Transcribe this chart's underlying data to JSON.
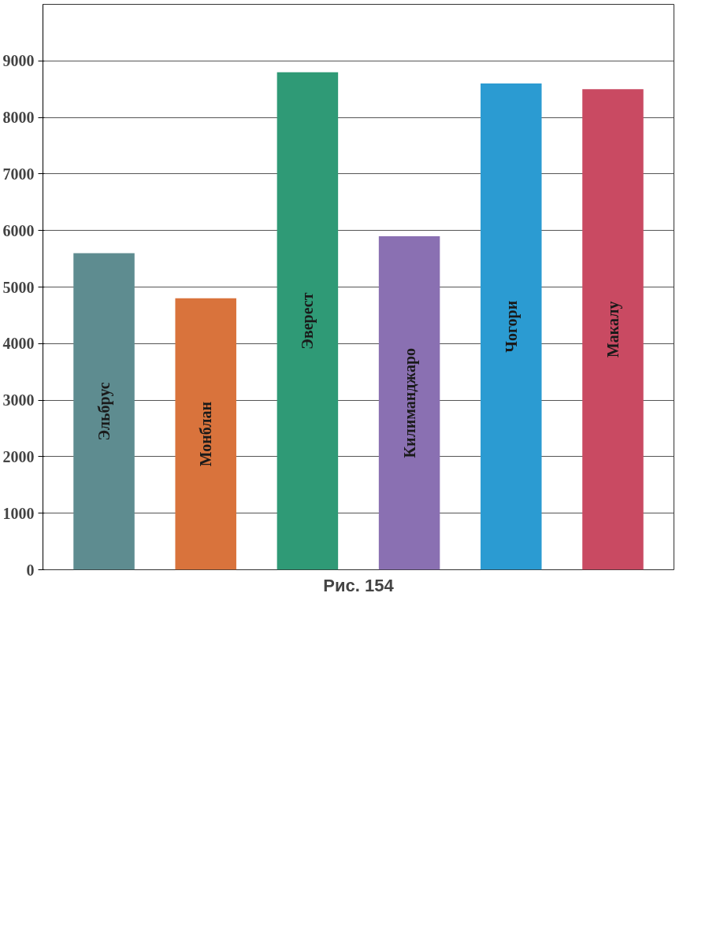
{
  "chart_data": {
    "type": "bar",
    "categories": [
      "Эльбрус",
      "Монблан",
      "Эверест",
      "Килиманджаро",
      "Чогори",
      "Макалу"
    ],
    "values": [
      5600,
      4800,
      8800,
      5900,
      8600,
      8500
    ],
    "colors": [
      "#5e8c90",
      "#d9733c",
      "#2f9a76",
      "#8a70b2",
      "#2b9bd2",
      "#c94a62"
    ],
    "ylim": [
      0,
      10000
    ],
    "yticks": [
      0,
      1000,
      2000,
      3000,
      4000,
      5000,
      6000,
      7000,
      8000,
      9000
    ],
    "grid": "y",
    "annotations": [
      "Рис. 154"
    ]
  }
}
